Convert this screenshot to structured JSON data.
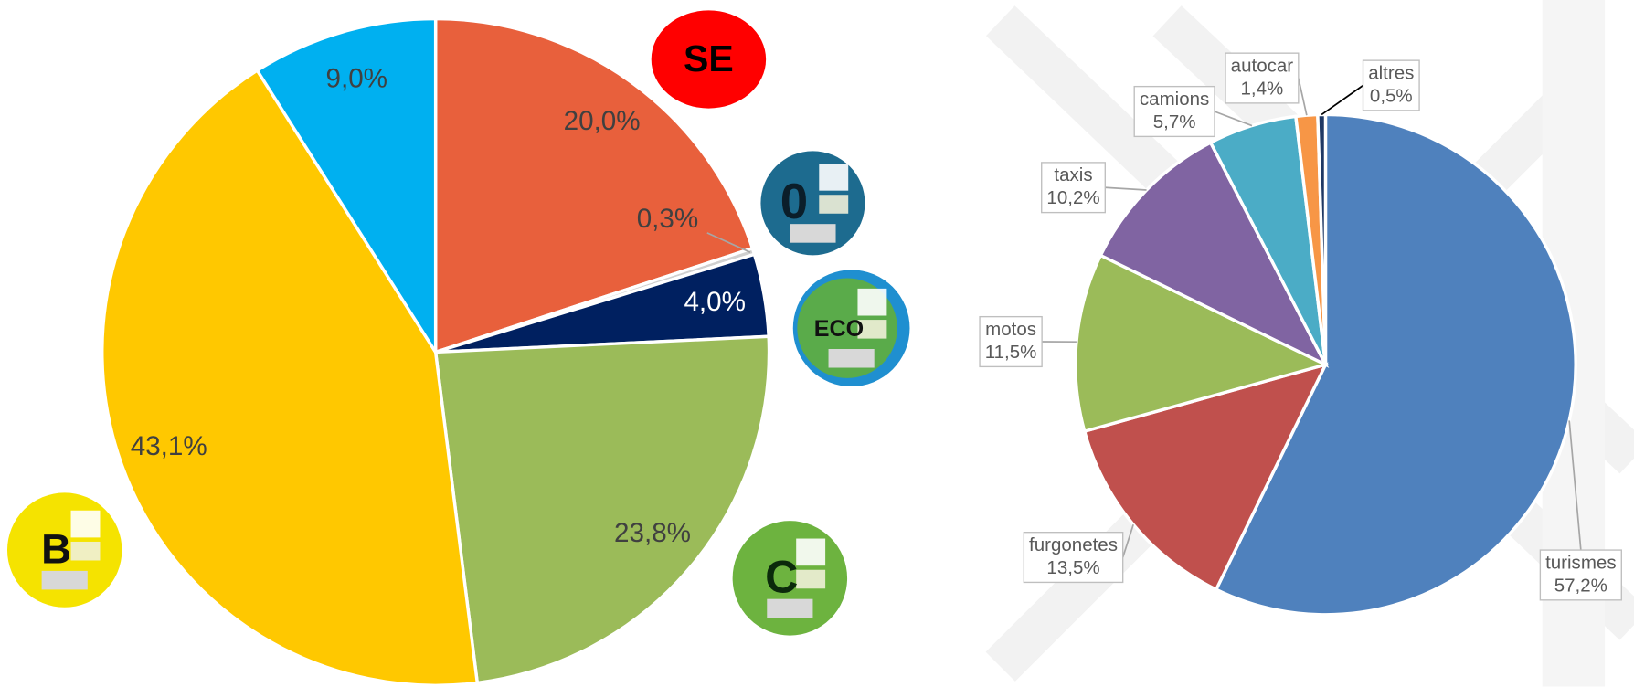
{
  "chart_data": [
    {
      "type": "pie",
      "categories": [
        "SE",
        "0",
        "ECO",
        "C",
        "B",
        null
      ],
      "values": [
        20.0,
        0.3,
        4.0,
        23.8,
        43.1,
        9.0
      ],
      "value_labels": [
        "20,0%",
        "0,3%",
        "4,0%",
        "23,8%",
        "43,1%",
        "9,0%"
      ],
      "colors": [
        "#e8603c",
        "#d0d0d0",
        "#002060",
        "#9bbb59",
        "#ffc800",
        "#00b0f0"
      ]
    },
    {
      "type": "pie",
      "categories": [
        "turismes",
        "furgonetes",
        "motos",
        "taxis",
        "camions",
        "autocar",
        "altres"
      ],
      "values": [
        57.2,
        13.5,
        11.5,
        10.2,
        5.7,
        1.4,
        0.5
      ],
      "value_labels": [
        "57,2%",
        "13,5%",
        "11,5%",
        "10,2%",
        "5,7%",
        "1,4%",
        "0,5%"
      ],
      "colors": [
        "#4f81bd",
        "#c0504d",
        "#9bbb59",
        "#8064a2",
        "#4bacc6",
        "#f79646",
        "#1f3864"
      ]
    }
  ]
}
